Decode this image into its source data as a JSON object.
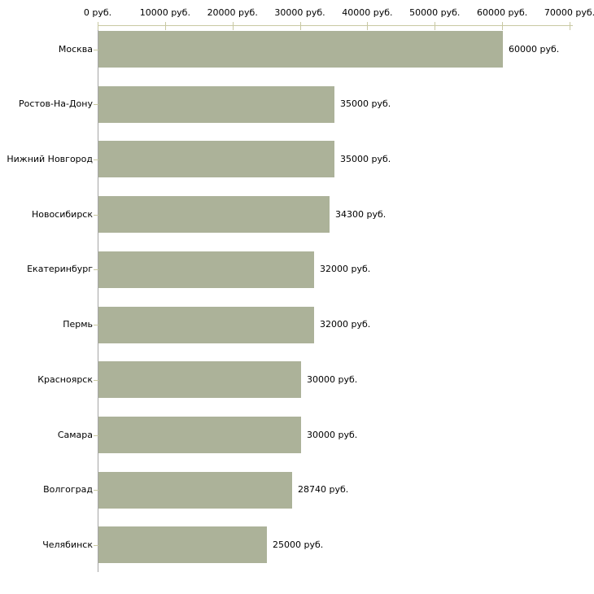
{
  "chart_data": {
    "type": "bar",
    "orientation": "horizontal",
    "categories": [
      "Москва",
      "Ростов-На-Дону",
      "Нижний Новгород",
      "Новосибирск",
      "Екатеринбург",
      "Пермь",
      "Красноярск",
      "Самара",
      "Волгоград",
      "Челябинск"
    ],
    "values": [
      60000,
      35000,
      35000,
      34300,
      32000,
      32000,
      30000,
      30000,
      28740,
      25000
    ],
    "value_labels": [
      "60000 руб.",
      "35000 руб.",
      "35000 руб.",
      "34300 руб.",
      "32000 руб.",
      "32000 руб.",
      "30000 руб.",
      "30000 руб.",
      "28740 руб.",
      "25000 руб."
    ],
    "x_axis": {
      "min": 0,
      "max": 70000,
      "ticks": [
        0,
        10000,
        20000,
        30000,
        40000,
        50000,
        60000,
        70000
      ],
      "tick_labels": [
        "0 руб.",
        "10000 руб.",
        "20000 руб.",
        "30000 руб.",
        "40000 руб.",
        "50000 руб.",
        "60000 руб.",
        "70000 руб."
      ],
      "position": "top"
    },
    "grid": false,
    "legend": false,
    "colors": {
      "bar_fill": "#acb299",
      "value_axis_line": "#c8c8a2",
      "tick_mark": "#c8c8a2",
      "category_axis_line": "#a5a5a5",
      "label_text": "#000000",
      "background": "#ffffff"
    }
  }
}
